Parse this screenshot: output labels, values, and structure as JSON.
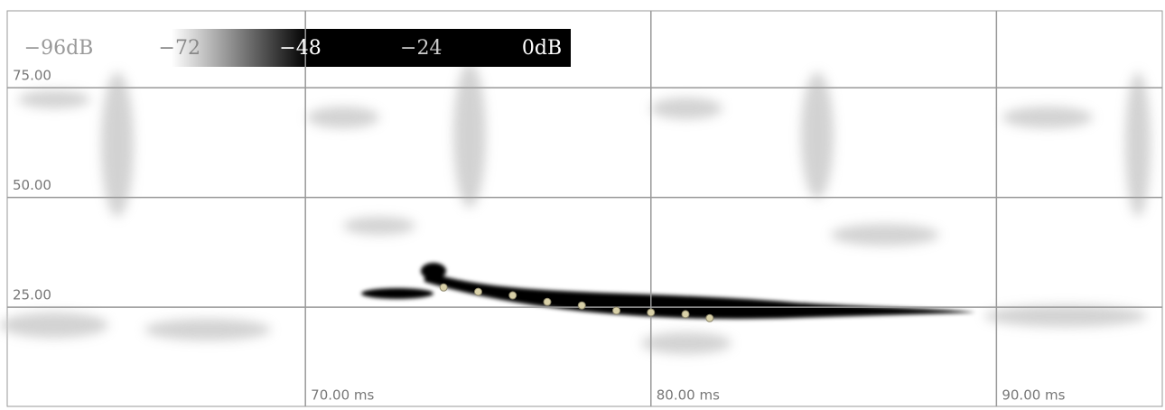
{
  "chart_data": {
    "type": "spectrogram",
    "x": [
      74.0,
      75.0,
      76.0,
      77.0,
      78.0,
      79.0,
      80.0,
      81.0,
      81.7
    ],
    "values": [
      29.5,
      28.5,
      27.7,
      26.2,
      25.4,
      24.2,
      23.8,
      23.4,
      22.5
    ],
    "color": "#d8d0a8",
    "xlim": [
      61.37,
      94.8
    ],
    "ylim": [
      2.4,
      92.5
    ],
    "xticks": [
      {
        "value": 70,
        "label": "70.00 ms"
      },
      {
        "value": 80,
        "label": "80.00 ms"
      },
      {
        "value": 90,
        "label": "90.00 ms"
      }
    ],
    "yticks": [
      {
        "value": 25,
        "label": "25.00"
      },
      {
        "value": 50,
        "label": "50.00"
      },
      {
        "value": 75,
        "label": "75.00"
      }
    ],
    "grid": true,
    "colorbar": {
      "lim": [
        -96,
        0
      ],
      "ticks": [
        {
          "value": -96,
          "label": "−96dB"
        },
        {
          "value": -72,
          "label": "−72"
        },
        {
          "value": -48,
          "label": "−48"
        },
        {
          "value": -24,
          "label": "−24"
        },
        {
          "value": 0,
          "label": "0dB"
        }
      ]
    }
  }
}
